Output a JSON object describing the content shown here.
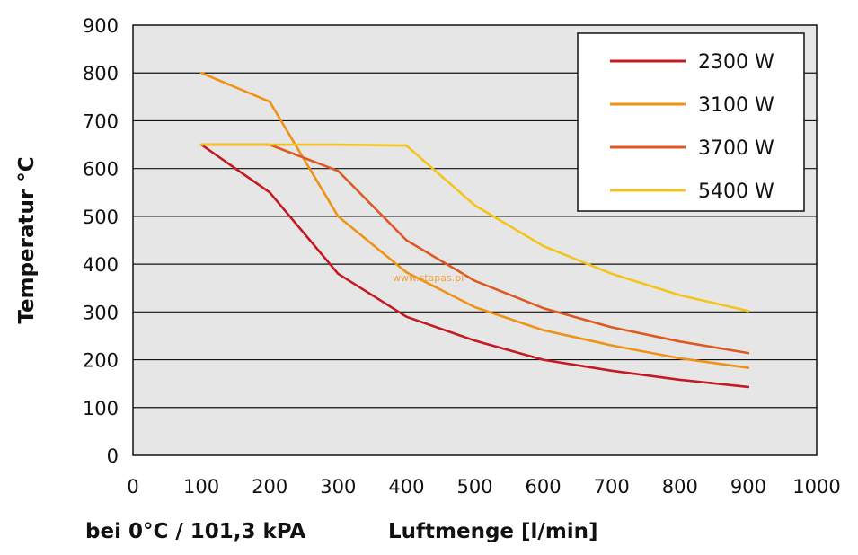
{
  "chart_data": {
    "type": "line",
    "ylabel": "Temperatur °C",
    "xlabel": "Luftmenge [l/min]",
    "condition_note": "bei 0°C / 101,3 kPA",
    "watermark": "www.stapas.pl",
    "xlim": [
      0,
      1000
    ],
    "ylim": [
      0,
      900
    ],
    "x_ticks": [
      "0",
      "100",
      "200",
      "300",
      "400",
      "500",
      "600",
      "700",
      "800",
      "900",
      "1000"
    ],
    "y_ticks": [
      "0",
      "100",
      "200",
      "300",
      "400",
      "500",
      "600",
      "700",
      "800",
      "900"
    ],
    "grid": "horizontal",
    "plot_background": "#e6e6e6",
    "legend_position": "top-right",
    "series": [
      {
        "name": "2300 W",
        "color": "#c41a23",
        "x": [
          100,
          200,
          300,
          400,
          500,
          600,
          700,
          800,
          900
        ],
        "y": [
          650,
          550,
          380,
          290,
          240,
          200,
          177,
          158,
          143
        ]
      },
      {
        "name": "3100 W",
        "color": "#ef9317",
        "x": [
          100,
          200,
          300,
          400,
          500,
          600,
          700,
          800,
          900
        ],
        "y": [
          800,
          740,
          500,
          383,
          310,
          262,
          230,
          203,
          183
        ]
      },
      {
        "name": "3700 W",
        "color": "#dc5a21",
        "x": [
          100,
          200,
          300,
          400,
          500,
          600,
          700,
          800,
          900
        ],
        "y": [
          650,
          650,
          595,
          450,
          365,
          308,
          268,
          238,
          214
        ]
      },
      {
        "name": "5400 W",
        "color": "#f4c41c",
        "x": [
          100,
          200,
          300,
          400,
          500,
          600,
          700,
          800,
          900
        ],
        "y": [
          650,
          650,
          650,
          648,
          523,
          438,
          380,
          335,
          302
        ]
      }
    ]
  }
}
